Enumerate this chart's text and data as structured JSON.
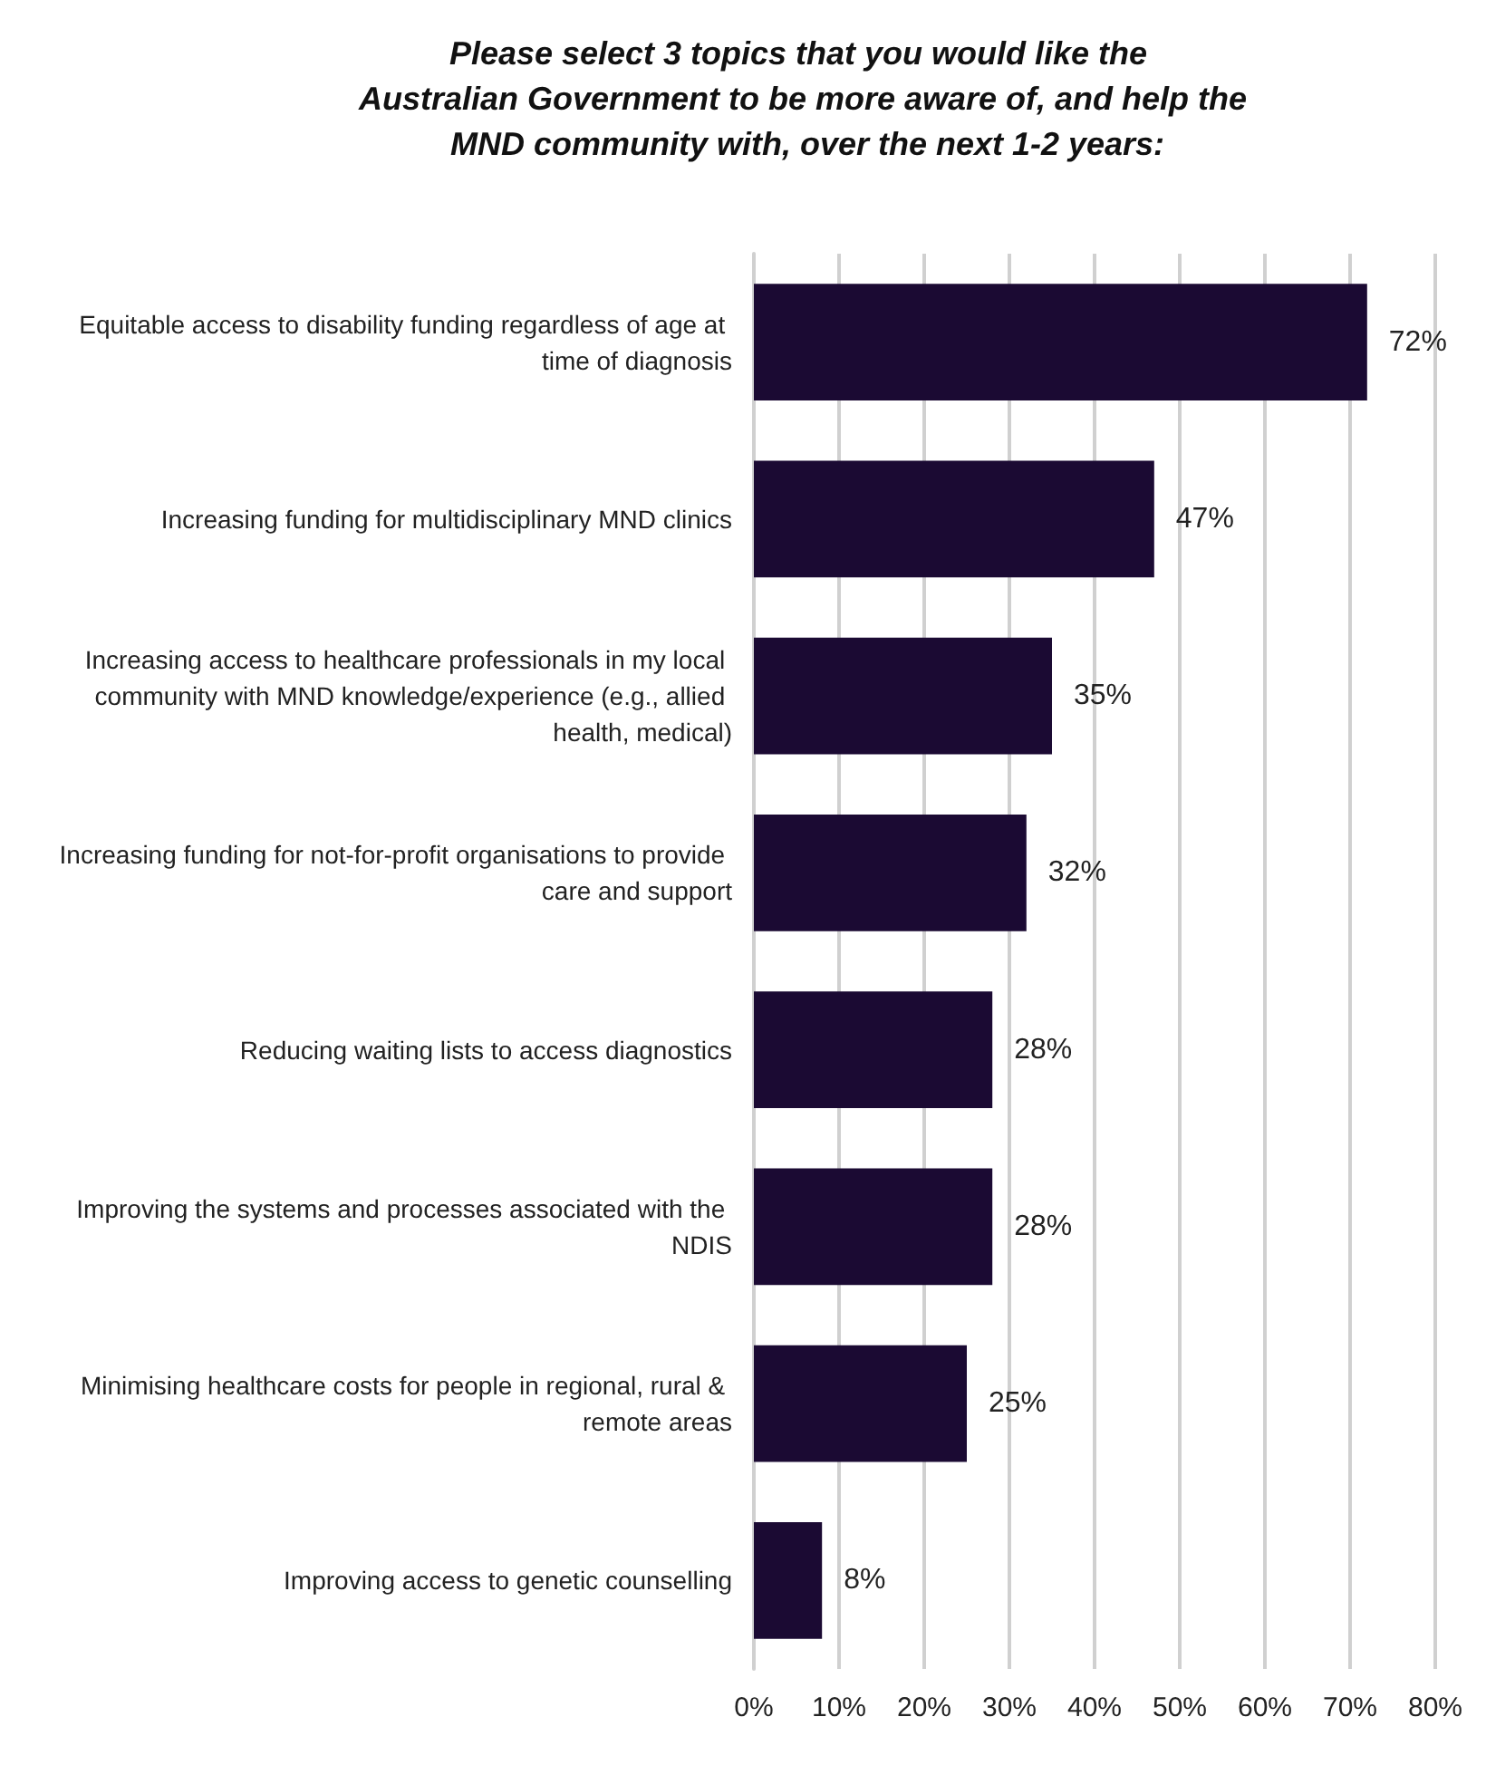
{
  "chart_data": {
    "type": "bar",
    "orientation": "horizontal",
    "title": "Please select 3 topics that you would like the Australian Government to be more aware of, and help the MND community with, over the next 1-2 years:",
    "categories": [
      "Equitable access to disability funding regardless of age at time of diagnosis",
      "Increasing funding for multidisciplinary MND clinics",
      "Increasing access to healthcare professionals in my local community with MND knowledge/experience (e.g., allied health, medical)",
      "Increasing funding for not-for-profit organisations to provide care and support",
      "Reducing waiting lists to access diagnostics",
      "Improving the systems and processes associated with the NDIS",
      "Minimising healthcare costs for people in regional, rural & remote areas",
      "Improving access to genetic counselling"
    ],
    "values": [
      72,
      47,
      35,
      32,
      28,
      28,
      25,
      8
    ],
    "value_labels": [
      "72%",
      "47%",
      "35%",
      "32%",
      "28%",
      "28%",
      "25%",
      "8%"
    ],
    "color": "#1b0a33",
    "xlim": [
      0,
      80
    ],
    "xticks": [
      {
        "value": 0,
        "label": "0%"
      },
      {
        "value": 10,
        "label": "10%"
      },
      {
        "value": 20,
        "label": "20%"
      },
      {
        "value": 30,
        "label": "30%"
      },
      {
        "value": 40,
        "label": "40%"
      },
      {
        "value": 50,
        "label": "50%"
      },
      {
        "value": 60,
        "label": "60%"
      },
      {
        "value": 70,
        "label": "70%"
      },
      {
        "value": 80,
        "label": "80%"
      }
    ],
    "grid": "x"
  }
}
